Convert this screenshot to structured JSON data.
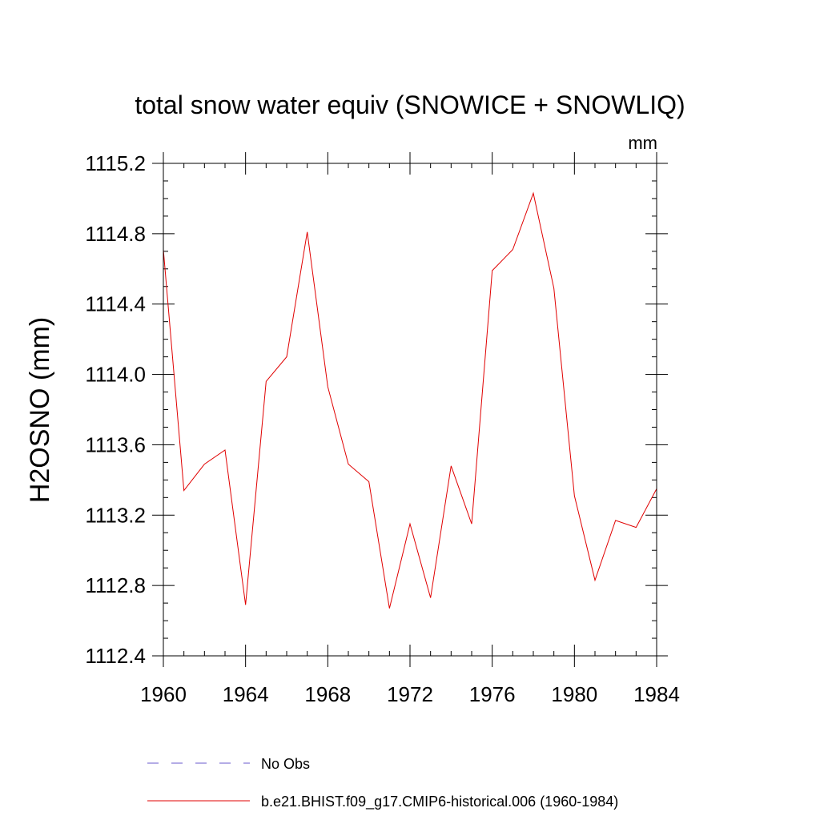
{
  "chart_data": {
    "type": "line",
    "title": "total snow water equiv (SNOWICE + SNOWLIQ)",
    "units": "mm",
    "ylabel": "H2OSNO  (mm)",
    "xlabel": "",
    "xlim": [
      1960,
      1984
    ],
    "ylim": [
      1112.4,
      1115.2
    ],
    "xticks": [
      "1960",
      "1964",
      "1968",
      "1972",
      "1976",
      "1980",
      "1984"
    ],
    "yticks": [
      "1112.4",
      "1112.8",
      "1113.2",
      "1113.6",
      "1114.0",
      "1114.4",
      "1114.8",
      "1115.2"
    ],
    "grid": false,
    "legend_position": "bottom",
    "series": [
      {
        "name": "No Obs",
        "color": "#6a5acd",
        "style": "dashed",
        "x": [],
        "y": []
      },
      {
        "name": "b.e21.BHIST.f09_g17.CMIP6-historical.006 (1960-1984)",
        "color": "#e00000",
        "style": "solid",
        "x": [
          1960,
          1961,
          1962,
          1963,
          1964,
          1965,
          1966,
          1967,
          1968,
          1969,
          1970,
          1971,
          1972,
          1973,
          1974,
          1975,
          1976,
          1977,
          1978,
          1979,
          1980,
          1981,
          1982,
          1983,
          1984
        ],
        "y": [
          1114.71,
          1113.34,
          1113.49,
          1113.57,
          1112.69,
          1113.96,
          1114.1,
          1114.81,
          1113.93,
          1113.49,
          1113.39,
          1112.67,
          1113.15,
          1112.73,
          1113.48,
          1113.15,
          1114.59,
          1114.71,
          1115.03,
          1114.49,
          1113.31,
          1112.83,
          1113.17,
          1113.13,
          1113.35
        ]
      }
    ]
  }
}
